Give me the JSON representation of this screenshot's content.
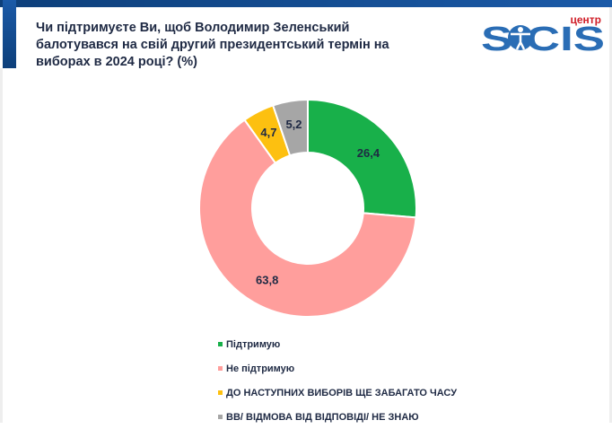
{
  "title": "Чи підтримуєте Ви, щоб Володимир Зеленський балотувався на свій другий президентський термін на виборах в 2024 році? (%)",
  "logo": {
    "text": "SOCIS",
    "small": "центр",
    "color": "#2a6db5",
    "small_color": "#d0202a"
  },
  "chart_data": {
    "type": "pie",
    "donut": true,
    "title": "Чи підтримуєте Ви, щоб Володимир Зеленський балотувався на свій другий президентський термін на виборах в 2024 році? (%)",
    "categories": [
      "Підтримую",
      "Не підтримую",
      "ДО НАСТУПНИХ ВИБОРІВ ЩЕ ЗАБАГАТО ЧАСУ",
      "ВВ/ ВІДМОВА ВІД ВІДПОВІДІ/ НЕ ЗНАЮ"
    ],
    "values": [
      26.4,
      63.8,
      4.7,
      5.2
    ],
    "labels": [
      "26,4",
      "63,8",
      "4,7",
      "5,2"
    ],
    "colors": [
      "#18b04a",
      "#ff9e9c",
      "#fdc010",
      "#a6a6a6"
    ],
    "legend_position": "bottom"
  }
}
